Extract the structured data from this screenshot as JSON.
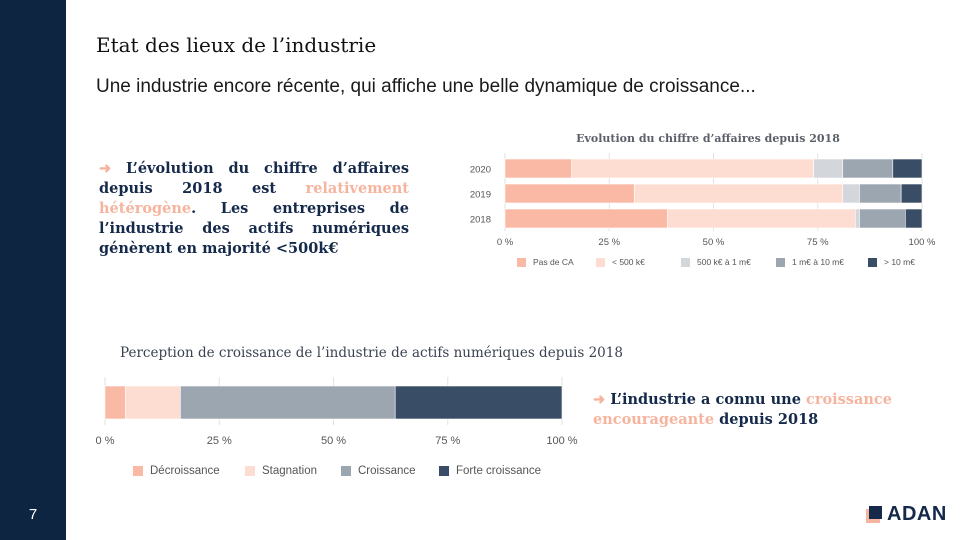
{
  "slide": {
    "page_number": "7",
    "title": "Etat des lieux de l’industrie",
    "subtitle": "Une industrie encore récente, qui affiche une belle dynamique de croissance...",
    "brand": "ADAN"
  },
  "callouts": {
    "first": {
      "arrow": "➜",
      "text_before": "L’évolution du chiffre d’affaires depuis 2018 est ",
      "highlight": "relativement hétérogène",
      "text_after": ". Les entreprises de l’industrie des actifs numériques génèrent en majorité <500k€"
    },
    "second": {
      "arrow": "➜",
      "text_before": "L’industrie a connu une ",
      "highlight": "croissance encourageante",
      "text_after": " depuis 2018"
    }
  },
  "colors": {
    "sidebar": "#0d2540",
    "accent": "#f6b49e",
    "text_dark": "#15294a"
  },
  "chart_data": [
    {
      "type": "bar",
      "orientation": "horizontal",
      "stacked": true,
      "title": "Evolution du chiffre d’affaires depuis 2018",
      "categories": [
        "2020",
        "2019",
        "2018"
      ],
      "xlim": [
        0,
        100
      ],
      "x_ticks": [
        "0 %",
        "25 %",
        "50 %",
        "75 %",
        "100 %"
      ],
      "series": [
        {
          "name": "Pas de CA",
          "color": "#f9b9a5",
          "values": [
            16,
            31,
            39
          ]
        },
        {
          "name": "< 500 k€",
          "color": "#fdddd2",
          "values": [
            58,
            50,
            45
          ]
        },
        {
          "name": "500 k€ à 1 m€",
          "color": "#d3d6db",
          "values": [
            7,
            4,
            1
          ]
        },
        {
          "name": "1 m€ à 10 m€",
          "color": "#9ba6b1",
          "values": [
            12,
            10,
            11
          ]
        },
        {
          "name": "> 10 m€",
          "color": "#3a4d66",
          "values": [
            7,
            5,
            4
          ]
        }
      ],
      "legend": "bottom"
    },
    {
      "type": "bar",
      "orientation": "horizontal",
      "stacked": true,
      "title": "Perception de croissance de l’industrie de actifs numériques depuis 2018",
      "categories": [
        ""
      ],
      "xlim": [
        0,
        100
      ],
      "x_ticks": [
        "0 %",
        "25 %",
        "50 %",
        "75 %",
        "100 %"
      ],
      "series": [
        {
          "name": "Décroissance",
          "color": "#f9b9a5",
          "values": [
            4.5
          ]
        },
        {
          "name": "Stagnation",
          "color": "#fdddd2",
          "values": [
            12
          ]
        },
        {
          "name": "Croissance",
          "color": "#9ba6b1",
          "values": [
            47
          ]
        },
        {
          "name": "Forte croissance",
          "color": "#3a4d66",
          "values": [
            36.5
          ]
        }
      ],
      "legend": "bottom"
    }
  ]
}
